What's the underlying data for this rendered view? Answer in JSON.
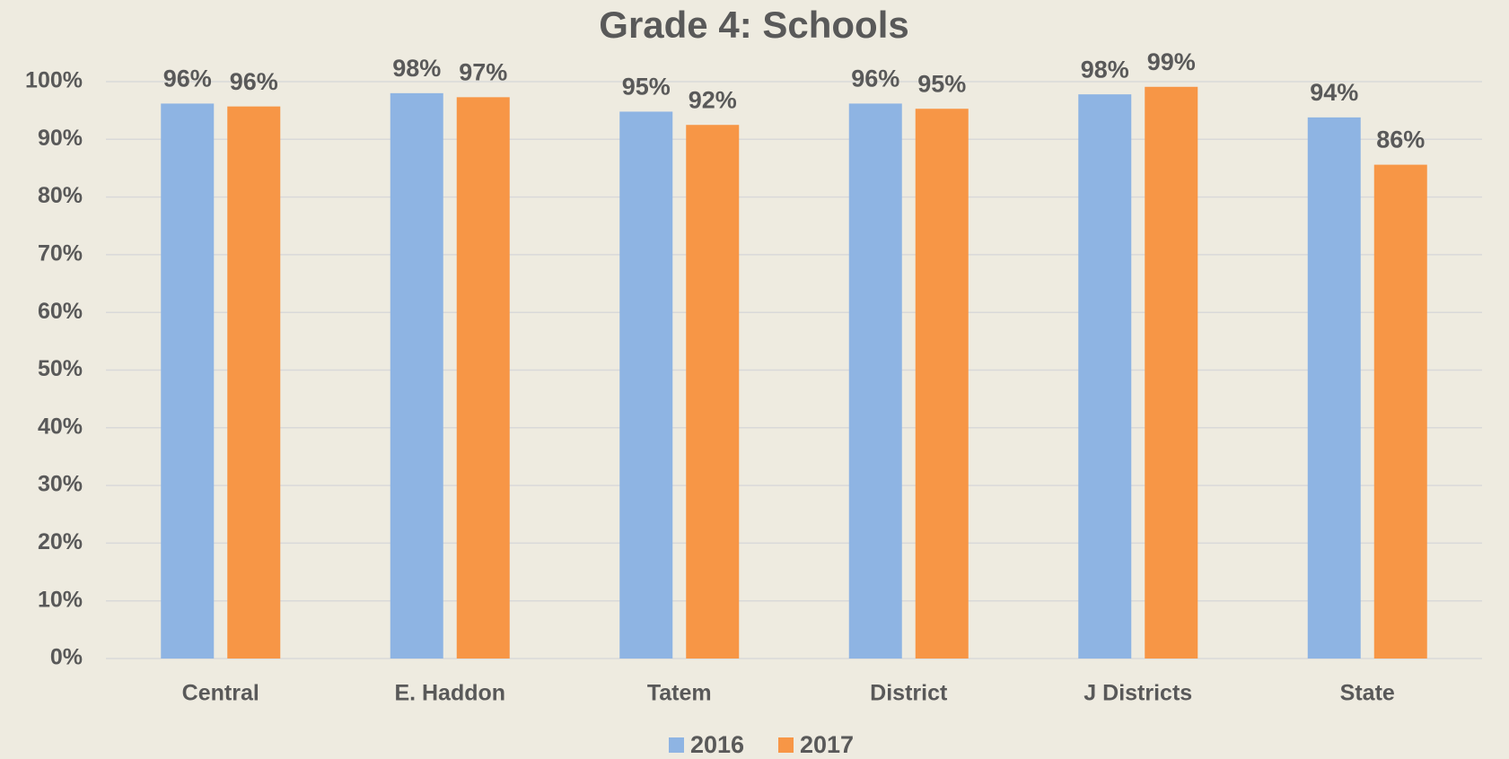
{
  "chart_data": {
    "type": "bar",
    "title": "Grade 4: Schools",
    "categories": [
      "Central",
      "E. Haddon",
      "Tatem",
      "District",
      "J Districts",
      "State"
    ],
    "series": [
      {
        "name": "2016",
        "color": "#8eb4e3",
        "values": [
          96.2,
          98.0,
          94.8,
          96.2,
          97.8,
          93.8
        ],
        "value_labels": [
          "96%",
          "98%",
          "95%",
          "96%",
          "98%",
          "94%"
        ]
      },
      {
        "name": "2017",
        "color": "#f79646",
        "values": [
          95.7,
          97.3,
          92.5,
          95.3,
          99.1,
          85.6
        ],
        "value_labels": [
          "96%",
          "97%",
          "92%",
          "95%",
          "99%",
          "86%"
        ]
      }
    ],
    "ylim": [
      0,
      100
    ],
    "yticks": [
      {
        "value": 0,
        "label": "0%"
      },
      {
        "value": 10,
        "label": "10%"
      },
      {
        "value": 20,
        "label": "20%"
      },
      {
        "value": 30,
        "label": "30%"
      },
      {
        "value": 40,
        "label": "40%"
      },
      {
        "value": 50,
        "label": "50%"
      },
      {
        "value": 60,
        "label": "60%"
      },
      {
        "value": 70,
        "label": "70%"
      },
      {
        "value": 80,
        "label": "80%"
      },
      {
        "value": 90,
        "label": "90%"
      },
      {
        "value": 100,
        "label": "100%"
      }
    ],
    "grid": true,
    "legend": "bottom"
  }
}
